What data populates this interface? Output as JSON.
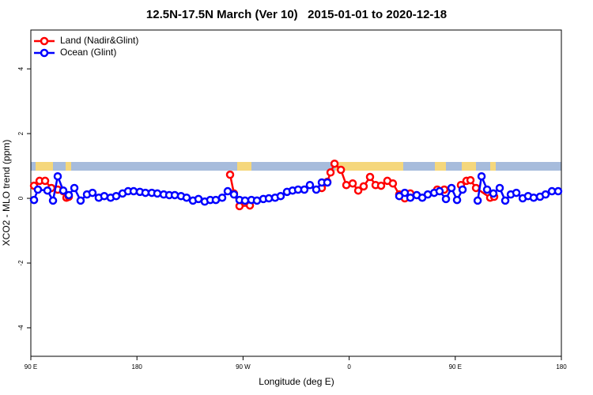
{
  "chart_data": {
    "type": "line",
    "title": "12.5N-17.5N March (Ver 10)   2015-01-01 to 2020-12-18",
    "x_label": "Longitude (deg E)",
    "y_label": "XCO2 - MLO trend (ppm)",
    "xlim": [
      90,
      540
    ],
    "ylim": [
      -4.88,
      5.2
    ],
    "xticks": [
      {
        "value": 90,
        "label": "90 E"
      },
      {
        "value": 180,
        "label": "180"
      },
      {
        "value": 270,
        "label": "90 W"
      },
      {
        "value": 360,
        "label": "0"
      },
      {
        "value": 450,
        "label": "90 E"
      },
      {
        "value": 540,
        "label": "180"
      }
    ],
    "yticks": [
      -4,
      -2,
      0,
      2,
      4
    ],
    "legend": "top-left",
    "series": [
      {
        "name": "Land (Nadir&Glint)",
        "color": "#ff0000",
        "x": [
          92.7,
          97.4,
          102.1,
          107.4,
          112.8,
          117.5,
          120.2,
          122.2,
          190,
          259.0,
          262.3,
          267.0,
          275.8,
          300,
          336.8,
          341.5,
          344.2,
          347.6,
          353.0,
          357.6,
          363.0,
          367.7,
          372.3,
          377.7,
          382.4,
          387.1,
          392.4,
          397.1,
          402.5,
          407.2,
          411.9,
          420,
          434.7,
          440.7,
          450,
          454.8,
          459.5,
          462.9,
          467.6,
          479.6,
          483.0
        ],
        "values": [
          0.39,
          0.54,
          0.54,
          0.32,
          0.27,
          0.22,
          0.02,
          0.05,
          null,
          0.73,
          0.15,
          -0.24,
          -0.22,
          null,
          0.32,
          0.51,
          0.8,
          1.07,
          0.88,
          0.41,
          0.46,
          0.24,
          0.37,
          0.66,
          0.41,
          0.39,
          0.54,
          0.46,
          0.12,
          0,
          0.15,
          null,
          0.27,
          0.27,
          null,
          0.41,
          0.54,
          0.56,
          0.32,
          0.02,
          0.05
        ]
      },
      {
        "name": "Ocean (Glint)",
        "color": "#0000ff",
        "x": [
          92.7,
          96.0,
          104.1,
          108.8,
          112.8,
          117.5,
          122.2,
          126.9,
          132.2,
          137.6,
          142.3,
          147.6,
          152.3,
          157.7,
          162.4,
          167.8,
          172.5,
          177.2,
          182.5,
          187.2,
          192.6,
          197.3,
          202.7,
          207.4,
          212.1,
          217.4,
          222.1,
          227.5,
          232.2,
          237.5,
          242.2,
          246.9,
          252.3,
          257.0,
          262.3,
          267.0,
          271.7,
          277.1,
          281.8,
          287.2,
          291.9,
          297.2,
          301.9,
          307.3,
          312.0,
          316.7,
          322.0,
          326.7,
          332.1,
          336.8,
          341.5,
          370,
          402.5,
          407.2,
          411.9,
          417.3,
          422.0,
          426.7,
          432.1,
          436.7,
          442.1,
          446.8,
          451.5,
          456.2,
          462,
          469.0,
          472.3,
          477.0,
          482.3,
          487.7,
          492.4,
          497.1,
          501.8,
          507.2,
          511.8,
          516.5,
          521.9,
          526.6,
          532.0,
          537.3
        ],
        "values": [
          -0.05,
          0.27,
          0.24,
          -0.07,
          0.68,
          0.24,
          0.1,
          0.32,
          -0.07,
          0.12,
          0.17,
          0.02,
          0.07,
          0.02,
          0.07,
          0.15,
          0.22,
          0.22,
          0.2,
          0.17,
          0.17,
          0.15,
          0.12,
          0.1,
          0.1,
          0.07,
          0.02,
          -0.07,
          -0.02,
          -0.1,
          -0.05,
          -0.05,
          0.02,
          0.22,
          0.12,
          -0.05,
          -0.07,
          -0.05,
          -0.07,
          -0.02,
          0,
          0.02,
          0.07,
          0.2,
          0.24,
          0.27,
          0.27,
          0.41,
          0.27,
          0.49,
          0.49,
          null,
          0.07,
          0.17,
          0.02,
          0.1,
          0.02,
          0.12,
          0.17,
          0.22,
          -0.02,
          0.32,
          -0.05,
          0.27,
          null,
          -0.07,
          0.68,
          0.27,
          0.15,
          0.32,
          -0.07,
          0.12,
          0.17,
          0,
          0.07,
          0.02,
          0.05,
          0.12,
          0.22,
          0.22
        ]
      }
    ]
  }
}
